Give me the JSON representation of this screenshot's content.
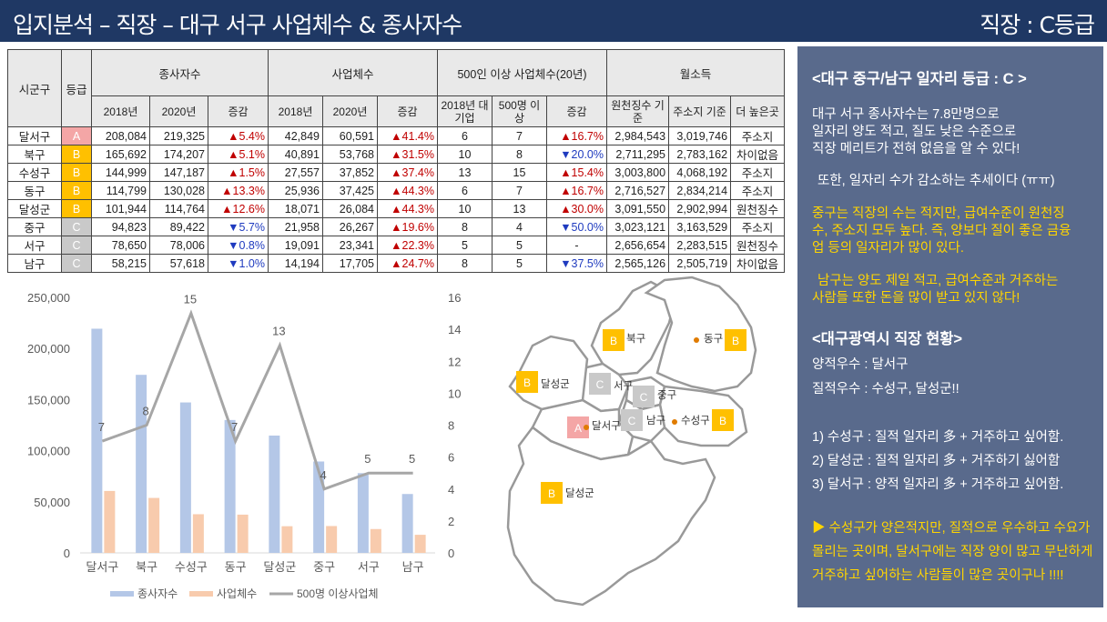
{
  "header": {
    "title": "입지분석 – 직장 – 대구 서구 사업체수 & 종사자수",
    "grade": "직장 : C등급"
  },
  "colors": {
    "A": "#f4a6a6",
    "B": "#ffc000",
    "C": "#c9c9c9",
    "bar_workers": "#b4c7e7",
    "bar_business": "#f8cbad",
    "line": "#a6a6a6"
  },
  "table": {
    "h_district": "시군구",
    "h_grade": "등급",
    "h_workers": "종사자수",
    "h_business": "사업체수",
    "h_large": "500인 이상 사업체수(20년)",
    "h_income": "월소득",
    "sub": [
      "2018년",
      "2020년",
      "증감",
      "2018년",
      "2020년",
      "증감",
      "2018년 대기업",
      "500명 이상",
      "증감",
      "원천징수 기준",
      "주소지 기준",
      "더 높은곳"
    ],
    "rows": [
      {
        "name": "달서구",
        "grade": "A",
        "w18": "208,084",
        "w20": "219,325",
        "wd": "▲5.4%",
        "wdir": "up",
        "b18": "42,849",
        "b20": "60,591",
        "bd": "▲41.4%",
        "bdir": "up",
        "l18": "6",
        "l20": "7",
        "ld": "▲16.7%",
        "ldir": "up",
        "i1": "2,984,543",
        "i2": "3,019,746",
        "hi": "주소지"
      },
      {
        "name": "북구",
        "grade": "B",
        "w18": "165,692",
        "w20": "174,207",
        "wd": "▲5.1%",
        "wdir": "up",
        "b18": "40,891",
        "b20": "53,768",
        "bd": "▲31.5%",
        "bdir": "up",
        "l18": "10",
        "l20": "8",
        "ld": "▼20.0%",
        "ldir": "down",
        "i1": "2,711,295",
        "i2": "2,783,162",
        "hi": "차이없음"
      },
      {
        "name": "수성구",
        "grade": "B",
        "w18": "144,999",
        "w20": "147,187",
        "wd": "▲1.5%",
        "wdir": "up",
        "b18": "27,557",
        "b20": "37,852",
        "bd": "▲37.4%",
        "bdir": "up",
        "l18": "13",
        "l20": "15",
        "ld": "▲15.4%",
        "ldir": "up",
        "i1": "3,003,800",
        "i2": "4,068,192",
        "hi": "주소지"
      },
      {
        "name": "동구",
        "grade": "B",
        "w18": "114,799",
        "w20": "130,028",
        "wd": "▲13.3%",
        "wdir": "up",
        "b18": "25,936",
        "b20": "37,425",
        "bd": "▲44.3%",
        "bdir": "up",
        "l18": "6",
        "l20": "7",
        "ld": "▲16.7%",
        "ldir": "up",
        "i1": "2,716,527",
        "i2": "2,834,214",
        "hi": "주소지"
      },
      {
        "name": "달성군",
        "grade": "B",
        "w18": "101,944",
        "w20": "114,764",
        "wd": "▲12.6%",
        "wdir": "up",
        "b18": "18,071",
        "b20": "26,084",
        "bd": "▲44.3%",
        "bdir": "up",
        "l18": "10",
        "l20": "13",
        "ld": "▲30.0%",
        "ldir": "up",
        "i1": "3,091,550",
        "i2": "2,902,994",
        "hi": "원천징수"
      },
      {
        "name": "중구",
        "grade": "C",
        "w18": "94,823",
        "w20": "89,422",
        "wd": "▼5.7%",
        "wdir": "down",
        "b18": "21,958",
        "b20": "26,267",
        "bd": "▲19.6%",
        "bdir": "up",
        "l18": "8",
        "l20": "4",
        "ld": "▼50.0%",
        "ldir": "down",
        "i1": "3,023,121",
        "i2": "3,163,529",
        "hi": "주소지"
      },
      {
        "name": "서구",
        "grade": "C",
        "w18": "78,650",
        "w20": "78,006",
        "wd": "▼0.8%",
        "wdir": "down",
        "b18": "19,091",
        "b20": "23,341",
        "bd": "▲22.3%",
        "bdir": "up",
        "l18": "5",
        "l20": "5",
        "ld": "-",
        "ldir": "none",
        "i1": "2,656,654",
        "i2": "2,283,515",
        "hi": "원천징수"
      },
      {
        "name": "남구",
        "grade": "C",
        "w18": "58,215",
        "w20": "57,618",
        "wd": "▼1.0%",
        "wdir": "down",
        "b18": "14,194",
        "b20": "17,705",
        "bd": "▲24.7%",
        "bdir": "up",
        "l18": "8",
        "l20": "5",
        "ld": "▼37.5%",
        "ldir": "down",
        "i1": "2,565,126",
        "i2": "2,505,719",
        "hi": "차이없음"
      }
    ]
  },
  "chart_data": {
    "type": "bar",
    "categories": [
      "달서구",
      "북구",
      "수성구",
      "동구",
      "달성군",
      "중구",
      "서구",
      "남구"
    ],
    "series": [
      {
        "name": "종사자수",
        "type": "bar",
        "axis": "left",
        "values": [
          219325,
          174207,
          147187,
          130028,
          114764,
          89422,
          78006,
          57618
        ]
      },
      {
        "name": "사업체수",
        "type": "bar",
        "axis": "left",
        "values": [
          60591,
          53768,
          37852,
          37425,
          26084,
          26267,
          23341,
          17705
        ]
      },
      {
        "name": "500명 이상사업체",
        "type": "line",
        "axis": "right",
        "values": [
          7,
          8,
          15,
          7,
          13,
          4,
          5,
          5
        ]
      }
    ],
    "y_left": {
      "min": 0,
      "max": 250000,
      "ticks": [
        "0",
        "50,000",
        "100,000",
        "150,000",
        "200,000",
        "250,000"
      ]
    },
    "y_right": {
      "min": 0,
      "max": 16,
      "ticks": [
        "0",
        "2",
        "4",
        "6",
        "8",
        "10",
        "12",
        "14",
        "16"
      ]
    },
    "line_labels": [
      "7",
      "8",
      "15",
      "7",
      "13",
      "4",
      "5",
      "5"
    ],
    "legend_position": "bottom",
    "grid": false
  },
  "map": {
    "regions": [
      {
        "grade": "B",
        "name": "북구"
      },
      {
        "grade": "B",
        "name": "동구"
      },
      {
        "grade": "B",
        "name": "달성군"
      },
      {
        "grade": "C",
        "name": "서구"
      },
      {
        "grade": "C",
        "name": "중구"
      },
      {
        "grade": "A",
        "name": "달서구"
      },
      {
        "grade": "C",
        "name": "남구"
      },
      {
        "grade": "B",
        "name": "수성구"
      },
      {
        "grade": "B",
        "name": "달성군"
      }
    ]
  },
  "panel": {
    "h1": "<대구 중구/남구 일자리 등급 : C >",
    "p1": [
      "대구 서구 종사자수는 7.8만명으로",
      "일자리 양도 적고, 질도 낮은 수준으로",
      "직장 메리트가 전혀 없음을 알 수 있다!"
    ],
    "p2": "또한, 일자리 수가 감소하는 추세이다 (ㅠㅠ)",
    "y1": [
      "중구는 직장의 수는 적지만, 급여수준이 원천징",
      "수, 주소지 모두 높다. 즉, 양보다 질이 좋은 금융",
      "업 등의 일자리가 많이 있다."
    ],
    "y2": [
      "남구는 양도 제일 적고, 급여수준과 거주하는",
      "사람들 또한 돈을 많이 받고 있지 않다!"
    ],
    "h2": "<대구광역시 직장 현황>",
    "s1": "양적우수 : 달서구",
    "s2": "질적우수 : 수성구, 달성군!!",
    "items": [
      "1) 수성구 : 질적 일자리 多 + 거주하고 싶어함.",
      "2) 달성군 : 질적 일자리 多 + 거주하기 싫어함",
      "3) 달서구 : 양적 일자리 多 + 거주하고 싶어함."
    ],
    "y3": [
      "▶ 수성구가 양은적지만, 질적으로 우수하고 수요가",
      "몰리는 곳이며, 달서구에는 직장 양이 많고 무난하게",
      "거주하고 싶어하는 사람들이 많은 곳이구나 !!!!"
    ]
  }
}
